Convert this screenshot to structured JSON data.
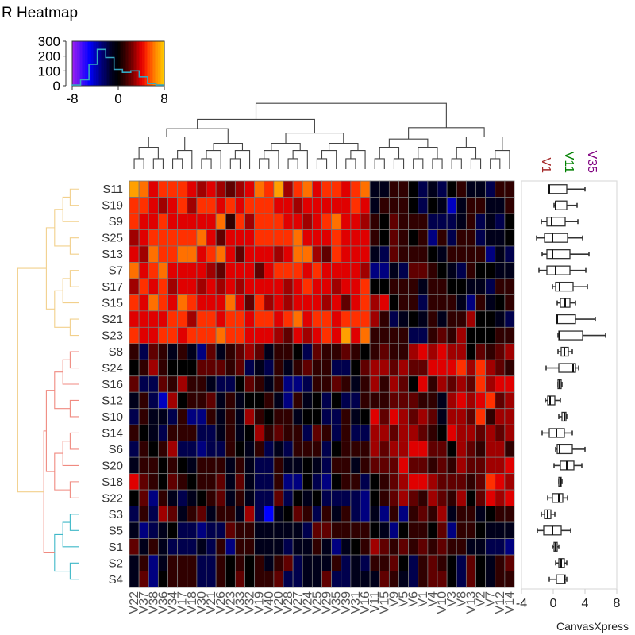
{
  "title": "R Heatmap",
  "watermark": "CanvasXpress",
  "chart_data": {
    "type": "heatmap",
    "title": "R Heatmap",
    "rows": [
      "S11",
      "S19",
      "S9",
      "S25",
      "S13",
      "S7",
      "S17",
      "S15",
      "S21",
      "S23",
      "S8",
      "S24",
      "S16",
      "S12",
      "S10",
      "S14",
      "S6",
      "S20",
      "S18",
      "S22",
      "S3",
      "S5",
      "S1",
      "S2",
      "S4"
    ],
    "row_clusters": [
      {
        "size": 10,
        "color": "#f2d08c"
      },
      {
        "size": 10,
        "color": "#f08a80"
      },
      {
        "size": 5,
        "color": "#3fb8c8"
      }
    ],
    "columns": [
      "V22",
      "V37",
      "V38",
      "V36",
      "V34",
      "V17",
      "V18",
      "V30",
      "V21",
      "V26",
      "V23",
      "V33",
      "V32",
      "V19",
      "V40",
      "V20",
      "V28",
      "V27",
      "V24",
      "V25",
      "V29",
      "V35",
      "V39",
      "V31",
      "V16",
      "V11",
      "V15",
      "V9",
      "V5",
      "V6",
      "V1",
      "V4",
      "V10",
      "V3",
      "V8",
      "V13",
      "V2",
      "V7",
      "V12",
      "V14"
    ],
    "column_clusters": [
      25,
      15
    ],
    "values": [
      [
        7,
        6,
        4,
        5,
        5,
        5,
        4,
        3,
        4,
        3,
        2,
        3,
        4,
        6,
        5,
        7,
        3,
        5,
        6,
        4,
        5,
        5,
        4,
        5,
        6,
        -1,
        -1,
        1,
        1,
        0,
        -2,
        -1,
        -2,
        0,
        1,
        -1,
        -1,
        -2,
        1,
        1
      ],
      [
        5,
        5,
        4,
        3,
        4,
        5,
        3,
        5,
        5,
        4,
        5,
        4,
        5,
        5,
        5,
        4,
        4,
        3,
        4,
        4,
        4,
        4,
        4,
        5,
        4,
        -1,
        1,
        1,
        1,
        0,
        -2,
        0,
        -1,
        -4,
        -1,
        1,
        1,
        -1,
        -1,
        1
      ],
      [
        5,
        4,
        4,
        5,
        4,
        4,
        4,
        4,
        4,
        6,
        1,
        5,
        3,
        5,
        5,
        5,
        4,
        4,
        3,
        4,
        5,
        6,
        4,
        4,
        3,
        1,
        0,
        2,
        1,
        1,
        1,
        -2,
        -2,
        -2,
        -1,
        1,
        -2,
        -1,
        -2,
        0
      ],
      [
        3,
        4,
        5,
        5,
        5,
        5,
        5,
        6,
        4,
        2,
        4,
        4,
        4,
        5,
        5,
        5,
        5,
        6,
        4,
        4,
        4,
        5,
        4,
        4,
        4,
        1,
        0,
        2,
        1,
        0,
        1,
        -3,
        1,
        -2,
        1,
        1,
        -2,
        -1,
        -1,
        0
      ],
      [
        4,
        3,
        6,
        5,
        5,
        6,
        6,
        4,
        5,
        6,
        4,
        2,
        4,
        4,
        4,
        3,
        4,
        6,
        6,
        3,
        2,
        5,
        4,
        4,
        4,
        -1,
        -2,
        2,
        1,
        1,
        1,
        0,
        -1,
        1,
        1,
        1,
        1,
        -3,
        -1,
        -2
      ],
      [
        6,
        4,
        5,
        6,
        4,
        4,
        4,
        4,
        3,
        2,
        4,
        4,
        4,
        2,
        4,
        5,
        5,
        5,
        4,
        5,
        4,
        4,
        4,
        4,
        3,
        -3,
        -3,
        -1,
        -2,
        2,
        2,
        1,
        0,
        -1,
        -2,
        1,
        0,
        0,
        -1,
        -1
      ],
      [
        3,
        5,
        4,
        5,
        3,
        4,
        4,
        3,
        4,
        3,
        4,
        3,
        4,
        4,
        4,
        4,
        3,
        4,
        5,
        4,
        4,
        3,
        4,
        4,
        5,
        0,
        0,
        1,
        1,
        1,
        -1,
        1,
        1,
        0,
        0,
        -1,
        -1,
        -2,
        1,
        1
      ],
      [
        5,
        4,
        6,
        5,
        4,
        6,
        5,
        4,
        4,
        4,
        6,
        4,
        2,
        5,
        3,
        4,
        3,
        4,
        4,
        4,
        3,
        4,
        2,
        4,
        5,
        3,
        4,
        0,
        1,
        1,
        -2,
        1,
        1,
        1,
        -1,
        -3,
        1,
        -1,
        0,
        1
      ],
      [
        4,
        4,
        4,
        4,
        5,
        5,
        3,
        5,
        5,
        4,
        5,
        5,
        4,
        5,
        5,
        4,
        5,
        6,
        4,
        5,
        5,
        4,
        5,
        5,
        5,
        3,
        1,
        -2,
        -1,
        0,
        -1,
        1,
        -1,
        1,
        1,
        3,
        0,
        0,
        -1,
        -2
      ],
      [
        5,
        4,
        4,
        5,
        5,
        4,
        5,
        5,
        5,
        6,
        5,
        5,
        4,
        4,
        4,
        3,
        2,
        4,
        3,
        4,
        5,
        4,
        7,
        4,
        6,
        1,
        1,
        1,
        1,
        -2,
        -2,
        1,
        2,
        1,
        3,
        0,
        0,
        0,
        1,
        1
      ],
      [
        1,
        -2,
        2,
        1,
        -1,
        1,
        -1,
        -3,
        2,
        -1,
        1,
        2,
        3,
        2,
        -1,
        1,
        1,
        0,
        -2,
        2,
        1,
        1,
        2,
        1,
        0,
        1,
        2,
        1,
        1,
        3,
        4,
        3,
        4,
        3,
        3,
        0,
        2,
        1,
        2,
        3
      ],
      [
        0,
        1,
        3,
        1,
        0,
        0,
        0,
        2,
        2,
        2,
        1,
        2,
        -2,
        -1,
        -2,
        1,
        -1,
        1,
        2,
        1,
        1,
        -2,
        -2,
        0,
        2,
        3,
        3,
        2,
        3,
        2,
        2,
        4,
        4,
        4,
        5,
        3,
        5,
        3,
        2,
        1
      ],
      [
        2,
        -2,
        -2,
        2,
        1,
        3,
        1,
        1,
        -1,
        -2,
        -2,
        0,
        2,
        1,
        -1,
        1,
        -3,
        -3,
        -2,
        1,
        1,
        2,
        1,
        -1,
        1,
        3,
        1,
        3,
        2,
        0,
        4,
        1,
        3,
        2,
        3,
        2,
        5,
        3,
        4,
        4
      ],
      [
        -1,
        1,
        -2,
        -4,
        3,
        0,
        1,
        1,
        2,
        -1,
        1,
        -1,
        0,
        0,
        1,
        -1,
        -3,
        1,
        -1,
        0,
        -2,
        0,
        -2,
        -2,
        1,
        1,
        1,
        2,
        2,
        2,
        1,
        1,
        -1,
        3,
        4,
        3,
        4,
        5,
        2,
        3
      ],
      [
        -2,
        1,
        -1,
        -1,
        -2,
        1,
        -3,
        -3,
        1,
        -1,
        1,
        -1,
        3,
        1,
        0,
        1,
        1,
        -1,
        0,
        0,
        -2,
        -2,
        1,
        -1,
        0,
        4,
        2,
        4,
        3,
        2,
        3,
        2,
        -1,
        3,
        3,
        2,
        5,
        1,
        3,
        3
      ],
      [
        1,
        0,
        -1,
        -2,
        1,
        1,
        1,
        -2,
        -2,
        -1,
        1,
        -1,
        0,
        3,
        1,
        2,
        1,
        1,
        -2,
        2,
        1,
        -2,
        1,
        -2,
        -2,
        3,
        3,
        2,
        3,
        3,
        2,
        1,
        0,
        4,
        3,
        3,
        2,
        3,
        2,
        3
      ],
      [
        -2,
        1,
        0,
        1,
        3,
        -2,
        -2,
        -3,
        -2,
        -2,
        1,
        0,
        -1,
        1,
        -2,
        -1,
        -2,
        1,
        1,
        1,
        -2,
        0,
        1,
        1,
        1,
        3,
        2,
        3,
        3,
        4,
        4,
        2,
        2,
        0,
        3,
        2,
        1,
        3,
        3,
        1
      ],
      [
        -1,
        1,
        1,
        0,
        1,
        0,
        -1,
        1,
        1,
        1,
        -1,
        1,
        -1,
        -2,
        -2,
        1,
        -1,
        -1,
        0,
        -1,
        -2,
        1,
        1,
        -1,
        1,
        2,
        2,
        2,
        4,
        2,
        2,
        1,
        2,
        1,
        3,
        2,
        2,
        3,
        3,
        4
      ],
      [
        4,
        2,
        1,
        0,
        2,
        1,
        0,
        1,
        1,
        2,
        -1,
        2,
        -1,
        -2,
        -2,
        1,
        -3,
        -3,
        0,
        -2,
        -3,
        0,
        1,
        1,
        -2,
        0,
        1,
        2,
        3,
        4,
        4,
        3,
        2,
        2,
        2,
        1,
        2,
        5,
        4,
        3
      ],
      [
        0,
        2,
        -3,
        1,
        -1,
        -2,
        -1,
        0,
        1,
        2,
        -1,
        1,
        -1,
        -2,
        -2,
        2,
        -2,
        0,
        -1,
        0,
        -2,
        -2,
        -2,
        -2,
        -3,
        0,
        1,
        2,
        3,
        2,
        1,
        3,
        2,
        1,
        3,
        0,
        2,
        4,
        3,
        4
      ],
      [
        -2,
        1,
        -2,
        3,
        2,
        -1,
        1,
        2,
        -1,
        1,
        1,
        -1,
        3,
        -2,
        -5,
        -1,
        0,
        2,
        1,
        -2,
        1,
        -1,
        1,
        -2,
        -3,
        -1,
        -3,
        1,
        -3,
        1,
        2,
        1,
        3,
        -1,
        1,
        1,
        -1,
        0,
        1,
        1
      ],
      [
        -1,
        -3,
        -2,
        -1,
        0,
        -2,
        -2,
        -3,
        -2,
        -2,
        2,
        1,
        1,
        -1,
        -1,
        -1,
        -1,
        -1,
        -2,
        2,
        2,
        1,
        1,
        1,
        1,
        0,
        -1,
        -3,
        0,
        1,
        1,
        0,
        2,
        -3,
        1,
        1,
        0,
        -1,
        -1,
        -1
      ],
      [
        2,
        -1,
        1,
        -1,
        -2,
        -2,
        -2,
        -1,
        -2,
        1,
        -3,
        1,
        1,
        -1,
        -1,
        -1,
        -2,
        -1,
        -1,
        1,
        -1,
        -3,
        -1,
        0,
        1,
        3,
        2,
        1,
        2,
        1,
        2,
        1,
        2,
        1,
        1,
        -1,
        -1,
        -2,
        -2,
        -3
      ],
      [
        -1,
        1,
        -3,
        -1,
        1,
        1,
        1,
        -2,
        -2,
        1,
        0,
        1,
        0,
        1,
        -1,
        1,
        2,
        -2,
        -1,
        -1,
        -1,
        1,
        -2,
        -1,
        -2,
        1,
        1,
        2,
        0,
        -2,
        1,
        2,
        1,
        0,
        -2,
        2,
        0,
        -1,
        1,
        2
      ],
      [
        -1,
        2,
        -3,
        0,
        1,
        1,
        1,
        -2,
        -2,
        1,
        0,
        2,
        0,
        1,
        1,
        2,
        -2,
        -2,
        -1,
        -1,
        2,
        -2,
        -2,
        -1,
        -1,
        -1,
        2,
        1,
        -1,
        -2,
        1,
        2,
        2,
        0,
        -2,
        2,
        0,
        -1,
        1,
        1
      ]
    ],
    "color_key": {
      "range": [
        -8,
        8
      ],
      "ticks": [
        "-8",
        "0",
        "8"
      ],
      "count_ticks": [
        "300",
        "200",
        "100",
        "0"
      ],
      "count_max": 300,
      "histogram_counts": [
        5,
        40,
        145,
        245,
        190,
        110,
        90,
        100,
        60,
        15,
        5
      ],
      "stops": [
        [
          -8,
          "#a020f0"
        ],
        [
          -5,
          "#0000ff"
        ],
        [
          -3,
          "#000080"
        ],
        [
          -1,
          "#00001a"
        ],
        [
          0,
          "#000000"
        ],
        [
          1,
          "#300000"
        ],
        [
          2,
          "#600000"
        ],
        [
          3,
          "#a00000"
        ],
        [
          4,
          "#e00000"
        ],
        [
          5,
          "#ff3000"
        ],
        [
          6,
          "#ff7000"
        ],
        [
          7,
          "#ffa000"
        ],
        [
          8,
          "#ffd000"
        ]
      ],
      "histogram_color": "#35a7c0"
    },
    "boxplot": {
      "variables": [
        {
          "label": "V1",
          "color": "#a52a2a"
        },
        {
          "label": "V11",
          "color": "#008000"
        },
        {
          "label": "V35",
          "color": "#800080"
        }
      ],
      "xlim": [
        -4,
        8
      ],
      "ticks": [
        "-4",
        "0",
        "4",
        "8"
      ],
      "stats": [
        [
          -0.6,
          -0.6,
          -0.5,
          1.7,
          4.0
        ],
        [
          0.1,
          0.3,
          0.3,
          1.7,
          3.0
        ],
        [
          -1.5,
          -0.8,
          -0.2,
          1.5,
          3.1
        ],
        [
          -2.1,
          -1.1,
          -0.1,
          1.8,
          3.7
        ],
        [
          -1.4,
          -0.8,
          -0.1,
          2.1,
          4.5
        ],
        [
          -1.8,
          -0.8,
          0.3,
          2.1,
          4.1
        ],
        [
          -0.1,
          0.3,
          0.8,
          2.5,
          4.3
        ],
        [
          0.5,
          0.9,
          1.5,
          2.1,
          2.8
        ],
        [
          0.4,
          0.4,
          0.5,
          2.8,
          5.3
        ],
        [
          0.6,
          0.7,
          0.8,
          3.7,
          6.6
        ],
        [
          0.6,
          1.0,
          1.4,
          1.9,
          2.4
        ],
        [
          -0.9,
          0.7,
          2.5,
          2.8,
          3.2
        ],
        [
          0.6,
          0.6,
          0.8,
          1.0,
          1.1
        ],
        [
          -1.0,
          -0.7,
          -0.4,
          0.2,
          0.9
        ],
        [
          0.7,
          1.1,
          1.4,
          1.6,
          1.7
        ],
        [
          -1.4,
          -0.5,
          0.4,
          1.4,
          2.4
        ],
        [
          0.3,
          0.5,
          0.8,
          2.4,
          4.0
        ],
        [
          0.1,
          0.9,
          1.7,
          2.6,
          3.6
        ],
        [
          0.7,
          0.7,
          0.9,
          1.0,
          1.1
        ],
        [
          -0.7,
          -0.1,
          0.7,
          1.2,
          1.8
        ],
        [
          -1.5,
          -1.1,
          -0.7,
          -0.3,
          0.2
        ],
        [
          -2.0,
          -1.2,
          -0.1,
          1.0,
          2.2
        ],
        [
          -0.1,
          0.1,
          0.3,
          0.5,
          0.7
        ],
        [
          0.3,
          0.7,
          1.0,
          1.4,
          1.7
        ],
        [
          -0.5,
          0.4,
          1.4,
          1.5,
          1.7
        ]
      ]
    }
  }
}
